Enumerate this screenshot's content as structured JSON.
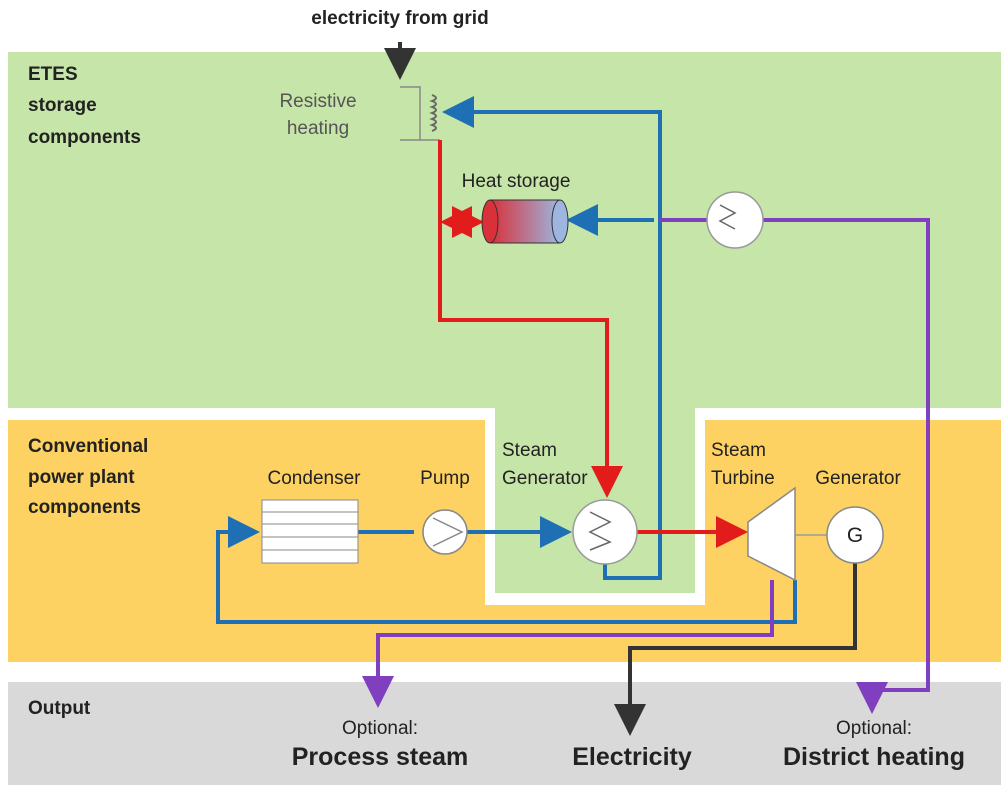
{
  "header": {
    "input": "electricity from grid"
  },
  "sections": [
    {
      "label": [
        "ETES",
        "storage",
        "components"
      ]
    },
    {
      "label": [
        "Conventional",
        "power plant",
        "components"
      ]
    },
    {
      "label": [
        "Output"
      ]
    }
  ],
  "components": [
    {
      "label": [
        "Resistive",
        "heating"
      ]
    },
    {
      "label": [
        "Heat storage"
      ]
    },
    {
      "label": [
        "Condenser"
      ]
    },
    {
      "label": [
        "Pump"
      ]
    },
    {
      "label": [
        "Steam",
        "Generator"
      ]
    },
    {
      "label": [
        "Steam",
        "Turbine"
      ]
    },
    {
      "label": [
        "Generator"
      ]
    },
    {
      "label": [
        "G"
      ]
    }
  ],
  "outputs": [
    {
      "note": "Optional:",
      "label": "Process steam"
    },
    {
      "label": "Electricity"
    },
    {
      "note": "Optional:",
      "label": "District heating"
    }
  ]
}
